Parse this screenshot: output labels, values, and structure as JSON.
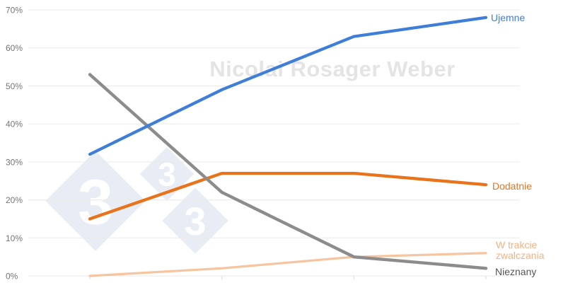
{
  "watermark": {
    "name_text": "Nicolai Rosager Weber",
    "logo_threes": [
      "3",
      "3",
      "3"
    ]
  },
  "colors": {
    "background": "#FFFFFF",
    "gridline": "#EAEAEA",
    "tick": "#D8D8D8",
    "axis_label": "#757575",
    "watermark_text": "#E4E4E4",
    "watermark_diamond": "#E8ECF4",
    "watermark_three": "#FFFFFF"
  },
  "chart_data": {
    "type": "line",
    "title": "",
    "grid": "horizontal",
    "legend_position": "right-of-line-ends",
    "y_axis": {
      "min": 0,
      "max": 70,
      "step": 10,
      "tick_labels": [
        "0%",
        "10%",
        "20%",
        "30%",
        "40%",
        "50%",
        "60%",
        "70%"
      ]
    },
    "x_axis": {
      "visible_labels": false,
      "point_count": 4
    },
    "series": [
      {
        "name": "Ujemne",
        "values": [
          32,
          49,
          63,
          68
        ],
        "color": "#3F7ED8",
        "label_color": "#3F7ED8",
        "width": 4.2
      },
      {
        "name": "Dodatnie",
        "values": [
          15,
          27,
          27,
          24
        ],
        "color": "#E8731A",
        "label_color": "#E8731A",
        "width": 4.3
      },
      {
        "name": "W trakcie zwalczania",
        "label_lines": [
          "W trakcie",
          "zwalczania"
        ],
        "values": [
          0,
          2,
          5,
          6
        ],
        "color": "#F6C5A0",
        "label_color": "#F3B183",
        "width": 3.2
      },
      {
        "name": "Nieznany",
        "values": [
          53,
          22,
          5,
          2
        ],
        "color": "#8C8C8C",
        "label_color": "#555555",
        "width": 4.4
      }
    ]
  }
}
